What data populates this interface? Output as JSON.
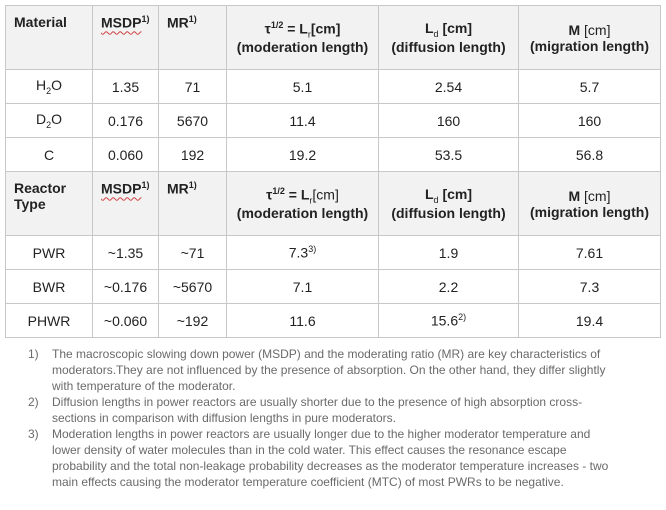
{
  "table": {
    "columns": [
      87,
      66,
      68,
      152,
      140,
      142
    ],
    "sections": [
      {
        "header": [
          [
            [
              {
                "text": "Material",
                "style": "bold"
              }
            ]
          ],
          [
            [
              {
                "text": "MSDP",
                "style": "bold-wavy"
              },
              {
                "text": "1)",
                "style": "sup"
              }
            ]
          ],
          [
            [
              {
                "text": "MR",
                "style": "bold"
              },
              {
                "text": "1)",
                "style": "sup"
              }
            ]
          ],
          [
            [
              {
                "text": "τ",
                "style": "bold"
              },
              {
                "text": "1/2",
                "style": "sup"
              },
              {
                "text": " = L",
                "style": "bold"
              },
              {
                "text": "r",
                "style": "sub"
              },
              {
                "text": "[cm]",
                "style": "bold"
              }
            ],
            [
              {
                "text": "(moderation length)",
                "style": "bold"
              }
            ]
          ],
          [
            [
              {
                "text": "L",
                "style": "bold"
              },
              {
                "text": "d",
                "style": "sub"
              },
              {
                "text": " [cm]",
                "style": "bold"
              }
            ],
            [
              {
                "text": "(diffusion length)",
                "style": "bold"
              }
            ]
          ],
          [
            [
              {
                "text": "M",
                "style": "bold"
              },
              {
                "text": " [cm]",
                "style": "normal"
              }
            ],
            [
              {
                "text": "(migration length)",
                "style": "bold"
              }
            ]
          ]
        ],
        "rows": [
          [
            [
              {
                "text": "H",
                "style": "normal"
              },
              {
                "text": "2",
                "style": "sub"
              },
              {
                "text": "O",
                "style": "normal"
              }
            ],
            "1.35",
            "71",
            "5.1",
            "2.54",
            "5.7"
          ],
          [
            [
              {
                "text": "D",
                "style": "normal"
              },
              {
                "text": "2",
                "style": "sub"
              },
              {
                "text": "O",
                "style": "normal"
              }
            ],
            "0.176",
            "5670",
            "11.4",
            "160",
            "160"
          ],
          [
            "C",
            "0.060",
            "192",
            "19.2",
            "53.5",
            "56.8"
          ]
        ]
      },
      {
        "header": [
          [
            [
              {
                "text": "Reactor Type",
                "style": "bold"
              }
            ]
          ],
          [
            [
              {
                "text": "MSDP",
                "style": "bold-wavy"
              },
              {
                "text": "1)",
                "style": "sup"
              }
            ]
          ],
          [
            [
              {
                "text": "MR",
                "style": "bold"
              },
              {
                "text": "1)",
                "style": "sup"
              }
            ]
          ],
          [
            [
              {
                "text": "τ",
                "style": "bold"
              },
              {
                "text": "1/2",
                "style": "sup"
              },
              {
                "text": " = L",
                "style": "bold"
              },
              {
                "text": "r",
                "style": "sub"
              },
              {
                "text": "[cm]",
                "style": "normal"
              }
            ],
            [
              {
                "text": "(moderation length)",
                "style": "bold"
              }
            ]
          ],
          [
            [
              {
                "text": "L",
                "style": "bold"
              },
              {
                "text": "d",
                "style": "sub"
              },
              {
                "text": " [cm]",
                "style": "bold"
              }
            ],
            [
              {
                "text": "(diffusion length)",
                "style": "bold"
              }
            ]
          ],
          [
            [
              {
                "text": "M",
                "style": "bold"
              },
              {
                "text": " [cm]",
                "style": "normal"
              }
            ],
            [
              {
                "text": "(migration length)",
                "style": "bold"
              }
            ]
          ]
        ],
        "rows": [
          [
            "PWR",
            "~1.35",
            "~71",
            [
              {
                "text": "7.3",
                "style": "normal"
              },
              {
                "text": "3)",
                "style": "sup"
              }
            ],
            "1.9",
            "7.61"
          ],
          [
            "BWR",
            "~0.176",
            "~5670",
            "7.1",
            "2.2",
            "7.3"
          ],
          [
            "PHWR",
            "~0.060",
            "~192",
            "11.6",
            [
              {
                "text": "15.6",
                "style": "normal"
              },
              {
                "text": "2)",
                "style": "sup"
              }
            ],
            "19.4"
          ]
        ]
      }
    ]
  },
  "footnotes": [
    {
      "marker": "1)",
      "text": "The macroscopic slowing down power (MSDP) and the moderating ratio (MR) are key characteristics of moderators.They are not influenced by the presence of absorption. On the other hand, they differ slightly with temperature of the moderator."
    },
    {
      "marker": "2)",
      "text": "Diffusion lengths in power reactors are usually shorter due to the presence of high absorption cross-sections in comparison with diffusion lengths in pure moderators."
    },
    {
      "marker": "3)",
      "text": "Moderation lengths in power reactors are usually longer due to the higher moderator temperature and lower density of water molecules than in the cold water. This effect causes the resonance escape probability and the total non-leakage probability decreases as the moderator temperature increases - two main effects causing the moderator temperature coefficient (MTC) of most PWRs to be negative."
    }
  ]
}
